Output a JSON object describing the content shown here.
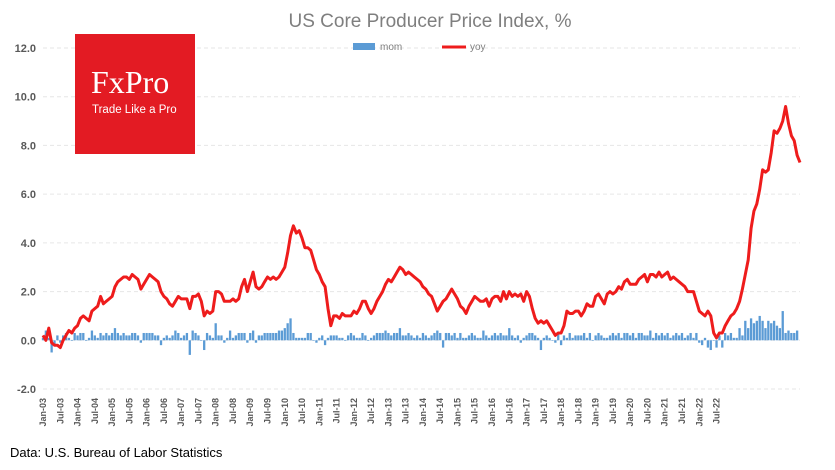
{
  "chart_data": {
    "type": "bar+line",
    "title": "US Core Producer Price Index, %",
    "legend": [
      "mom",
      "yoy"
    ],
    "legend_position": "top-center",
    "ylim": [
      -2,
      12
    ],
    "yticks": [
      -2,
      0,
      2,
      4,
      6,
      8,
      10,
      12
    ],
    "ytick_labels": [
      "-2.0",
      "0.0",
      "2.0",
      "4.0",
      "6.0",
      "8.0",
      "10.0",
      "12.0"
    ],
    "x_start": "Jan-03",
    "x_tick_labels": [
      "Jan-03",
      "Jul-03",
      "Jan-04",
      "Jul-04",
      "Jan-05",
      "Jul-05",
      "Jan-06",
      "Jul-06",
      "Jan-07",
      "Jul-07",
      "Jan-08",
      "Jul-08",
      "Jan-09",
      "Jul-09",
      "Jan-10",
      "Jul-10",
      "Jan-11",
      "Jul-11",
      "Jan-12",
      "Jul-12",
      "Jan-13",
      "Jul-13",
      "Jan-14",
      "Jul-14",
      "Jan-15",
      "Jul-15",
      "Jan-16",
      "Jul-16",
      "Jan-17",
      "Jul-17",
      "Jan-18",
      "Jul-18",
      "Jan-19",
      "Jul-19",
      "Jan-20",
      "Jul-20",
      "Jan-21",
      "Jul-21",
      "Jan-22",
      "Jul-22"
    ],
    "series": [
      {
        "name": "yoy",
        "type": "line",
        "color": "#ee1c1c",
        "values": [
          0.2,
          0.0,
          0.5,
          -0.1,
          -0.2,
          -0.2,
          -0.3,
          0.0,
          0.2,
          0.4,
          0.3,
          0.5,
          0.6,
          0.9,
          1.0,
          0.9,
          0.8,
          1.2,
          1.3,
          1.4,
          1.8,
          1.5,
          1.6,
          1.7,
          1.8,
          2.2,
          2.4,
          2.5,
          2.6,
          2.6,
          2.5,
          2.7,
          2.6,
          2.5,
          2.1,
          2.3,
          2.5,
          2.7,
          2.6,
          2.5,
          2.4,
          2.0,
          1.8,
          1.7,
          1.5,
          1.4,
          1.6,
          1.8,
          1.7,
          1.7,
          1.7,
          1.3,
          1.8,
          1.8,
          1.9,
          1.6,
          1.0,
          1.2,
          1.1,
          1.2,
          2.0,
          2.0,
          1.9,
          1.6,
          1.6,
          1.6,
          1.7,
          1.6,
          1.7,
          2.2,
          2.5,
          2.0,
          2.4,
          2.8,
          2.2,
          2.1,
          2.2,
          2.4,
          2.6,
          2.5,
          2.6,
          2.5,
          2.6,
          2.8,
          3.0,
          3.6,
          4.3,
          4.7,
          4.4,
          4.5,
          4.2,
          3.8,
          3.8,
          3.7,
          3.3,
          2.9,
          2.7,
          2.4,
          2.2,
          1.3,
          0.6,
          1.0,
          1.0,
          0.9,
          1.1,
          1.0,
          1.0,
          1.0,
          1.2,
          1.1,
          1.3,
          1.6,
          1.6,
          1.3,
          1.1,
          1.3,
          1.6,
          1.8,
          2.0,
          2.3,
          2.5,
          2.4,
          2.6,
          2.8,
          3.0,
          2.9,
          2.7,
          2.8,
          2.7,
          2.6,
          2.5,
          2.4,
          2.2,
          2.1,
          1.9,
          1.8,
          1.5,
          1.2,
          1.4,
          1.6,
          1.7,
          1.9,
          2.1,
          1.9,
          1.7,
          1.4,
          1.3,
          1.1,
          1.4,
          1.6,
          1.8,
          1.7,
          1.6,
          1.6,
          1.7,
          1.4,
          1.7,
          1.8,
          1.8,
          1.6,
          2.0,
          1.7,
          2.0,
          1.8,
          1.9,
          1.8,
          1.9,
          1.6,
          2.0,
          1.8,
          1.3,
          0.9,
          0.7,
          0.8,
          0.7,
          0.8,
          0.6,
          0.4,
          0.2,
          0.3,
          0.3,
          0.6,
          1.2,
          1.1,
          1.1,
          1.2,
          1.2,
          1.0,
          1.2,
          1.5,
          1.4,
          1.4,
          1.8,
          1.9,
          1.7,
          1.5,
          1.9,
          2.0,
          1.9,
          2.0,
          2.2,
          2.1,
          2.4,
          2.5,
          2.3,
          2.3,
          2.3,
          2.5,
          2.6,
          2.7,
          2.4,
          2.7,
          2.7,
          2.6,
          2.8,
          2.6,
          2.7,
          2.8,
          2.5,
          2.6,
          2.5,
          2.4,
          2.3,
          2.2,
          2.0,
          2.0,
          2.0,
          1.6,
          1.2,
          1.1,
          1.0,
          1.2,
          1.0,
          0.3,
          0.1,
          0.3,
          0.3,
          0.6,
          0.8,
          1.0,
          1.1,
          1.3,
          1.6,
          2.1,
          2.7,
          3.3,
          4.6,
          5.3,
          5.6,
          6.2,
          7.0,
          6.9,
          7.0,
          7.7,
          8.6,
          8.5,
          8.7,
          9.0,
          9.6,
          8.9,
          8.4,
          8.2,
          7.6,
          7.3
        ]
      },
      {
        "name": "mom",
        "type": "bar",
        "color": "#5b9bd5",
        "values": [
          0.1,
          0.4,
          0.1,
          -0.5,
          -0.2,
          0.2,
          -0.1,
          0.2,
          0.3,
          0.1,
          0.0,
          0.3,
          0.2,
          0.3,
          0.3,
          0.0,
          0.1,
          0.4,
          0.2,
          0.1,
          0.3,
          0.2,
          0.3,
          0.2,
          0.3,
          0.5,
          0.3,
          0.2,
          0.3,
          0.2,
          0.2,
          0.3,
          0.3,
          0.2,
          -0.1,
          0.3,
          0.3,
          0.3,
          0.3,
          0.2,
          0.2,
          -0.2,
          0.1,
          0.2,
          0.1,
          0.2,
          0.4,
          0.3,
          0.1,
          0.2,
          0.3,
          -0.6,
          0.4,
          0.3,
          0.2,
          0.0,
          -0.4,
          0.3,
          0.2,
          0.1,
          0.7,
          0.2,
          0.2,
          -0.1,
          0.1,
          0.4,
          0.1,
          0.2,
          0.3,
          0.3,
          0.3,
          -0.1,
          0.3,
          0.4,
          -0.1,
          0.2,
          0.2,
          0.3,
          0.3,
          0.3,
          0.3,
          0.3,
          0.4,
          0.4,
          0.5,
          0.7,
          0.9,
          0.3,
          0.1,
          0.1,
          0.1,
          0.1,
          0.3,
          0.3,
          0.0,
          -0.1,
          0.1,
          0.2,
          -0.2,
          0.1,
          0.2,
          0.2,
          0.2,
          0.1,
          0.1,
          0.0,
          0.2,
          0.3,
          0.2,
          0.1,
          0.1,
          0.3,
          0.2,
          0.0,
          0.1,
          0.2,
          0.3,
          0.3,
          0.3,
          0.4,
          0.3,
          0.2,
          0.3,
          0.3,
          0.5,
          0.2,
          0.2,
          0.3,
          0.2,
          0.1,
          0.2,
          0.1,
          0.3,
          0.2,
          0.1,
          0.2,
          0.3,
          0.4,
          0.3,
          -0.3,
          0.3,
          0.3,
          0.2,
          0.3,
          0.1,
          0.3,
          0.1,
          0.1,
          0.2,
          0.3,
          0.2,
          0.1,
          0.1,
          0.4,
          0.2,
          0.1,
          0.2,
          0.3,
          0.2,
          0.3,
          0.2,
          0.2,
          0.5,
          0.2,
          0.1,
          0.2,
          -0.1,
          0.1,
          0.2,
          0.3,
          0.3,
          0.2,
          0.1,
          -0.4,
          0.1,
          0.2,
          0.1,
          0.0,
          -0.1,
          0.3,
          -0.2,
          0.2,
          0.1,
          0.3,
          0.1,
          0.2,
          0.2,
          0.2,
          0.3,
          0.1,
          0.3,
          0.0,
          0.2,
          0.3,
          0.2,
          0.1,
          0.1,
          0.2,
          0.3,
          0.2,
          0.3,
          0.1,
          0.3,
          0.3,
          0.2,
          0.3,
          0.1,
          0.3,
          0.3,
          0.2,
          0.2,
          0.4,
          0.1,
          0.3,
          0.2,
          0.3,
          0.2,
          0.3,
          0.1,
          0.2,
          0.3,
          0.2,
          0.3,
          0.1,
          0.2,
          0.3,
          0.1,
          0.3,
          -0.1,
          -0.2,
          0.1,
          -0.3,
          -0.4,
          0.0,
          -0.3,
          0.2,
          -0.3,
          0.3,
          0.2,
          0.3,
          0.1,
          0.1,
          0.5,
          0.2,
          0.8,
          0.5,
          0.9,
          0.7,
          0.8,
          1.0,
          0.8,
          0.5,
          0.8,
          0.7,
          0.8,
          0.6,
          0.5,
          1.2,
          0.3,
          0.4,
          0.3,
          0.3,
          0.4
        ]
      }
    ]
  },
  "logo": {
    "name": "FxPro",
    "tagline": "Trade Like a Pro"
  },
  "source": "Data: U.S. Bureau of Labor Statistics"
}
